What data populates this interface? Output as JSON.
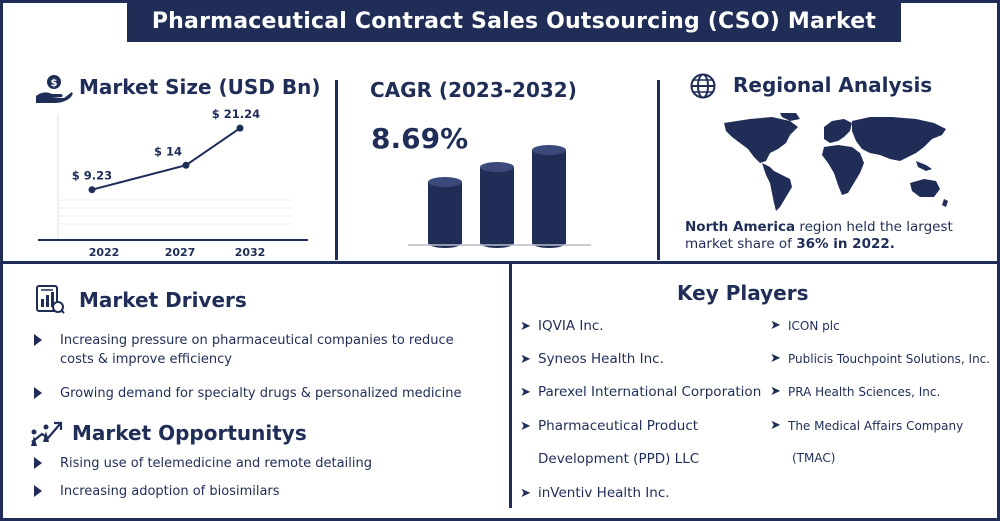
{
  "title": "Pharmaceutical Contract Sales Outsourcing (CSO) Market",
  "market_size": {
    "heading": "Market Size (USD Bn)",
    "icon": "money-hand-icon"
  },
  "cagr": {
    "heading": "CAGR (2023-2032)",
    "value": "8.69%"
  },
  "regional": {
    "heading": "Regional Analysis",
    "icon": "globe-icon",
    "text_bold_1": "North America",
    "text_1": " region held the largest",
    "text_2": "market share of ",
    "text_bold_2": "36% in 2022."
  },
  "drivers": {
    "heading": "Market Drivers",
    "icon": "report-chart-icon",
    "items": [
      "Increasing pressure on pharmaceutical companies to reduce costs & improve efficiency",
      "Growing demand for specialty drugs & personalized medicine"
    ]
  },
  "opportunities": {
    "heading": "Market Opportunitys",
    "icon": "growth-people-icon",
    "items": [
      "Rising use of telemedicine and remote detailing",
      "Increasing adoption of biosimilars"
    ]
  },
  "key_players": {
    "heading": "Key Players",
    "left": [
      "IQVIA Inc.",
      "Syneos Health Inc.",
      "Parexel International Corporation",
      "Pharmaceutical Product",
      "Development (PPD) LLC",
      "inVentiv Health Inc."
    ],
    "right": [
      "ICON plc",
      "Publicis Touchpoint Solutions, Inc.",
      "PRA Health Sciences, Inc.",
      "The Medical Affairs Company",
      "(TMAC)"
    ]
  },
  "chart_data": {
    "type": "line",
    "categories": [
      "2022",
      "2027",
      "2032"
    ],
    "values": [
      9.23,
      14,
      21.24
    ],
    "labels": [
      "$ 9.23",
      "$ 14",
      "$ 21.24"
    ],
    "title": "Market Size (USD Bn)",
    "xlabel": "",
    "ylabel": "",
    "ylim": [
      0,
      24
    ],
    "grid": true,
    "line_color": "#1f2d57"
  }
}
